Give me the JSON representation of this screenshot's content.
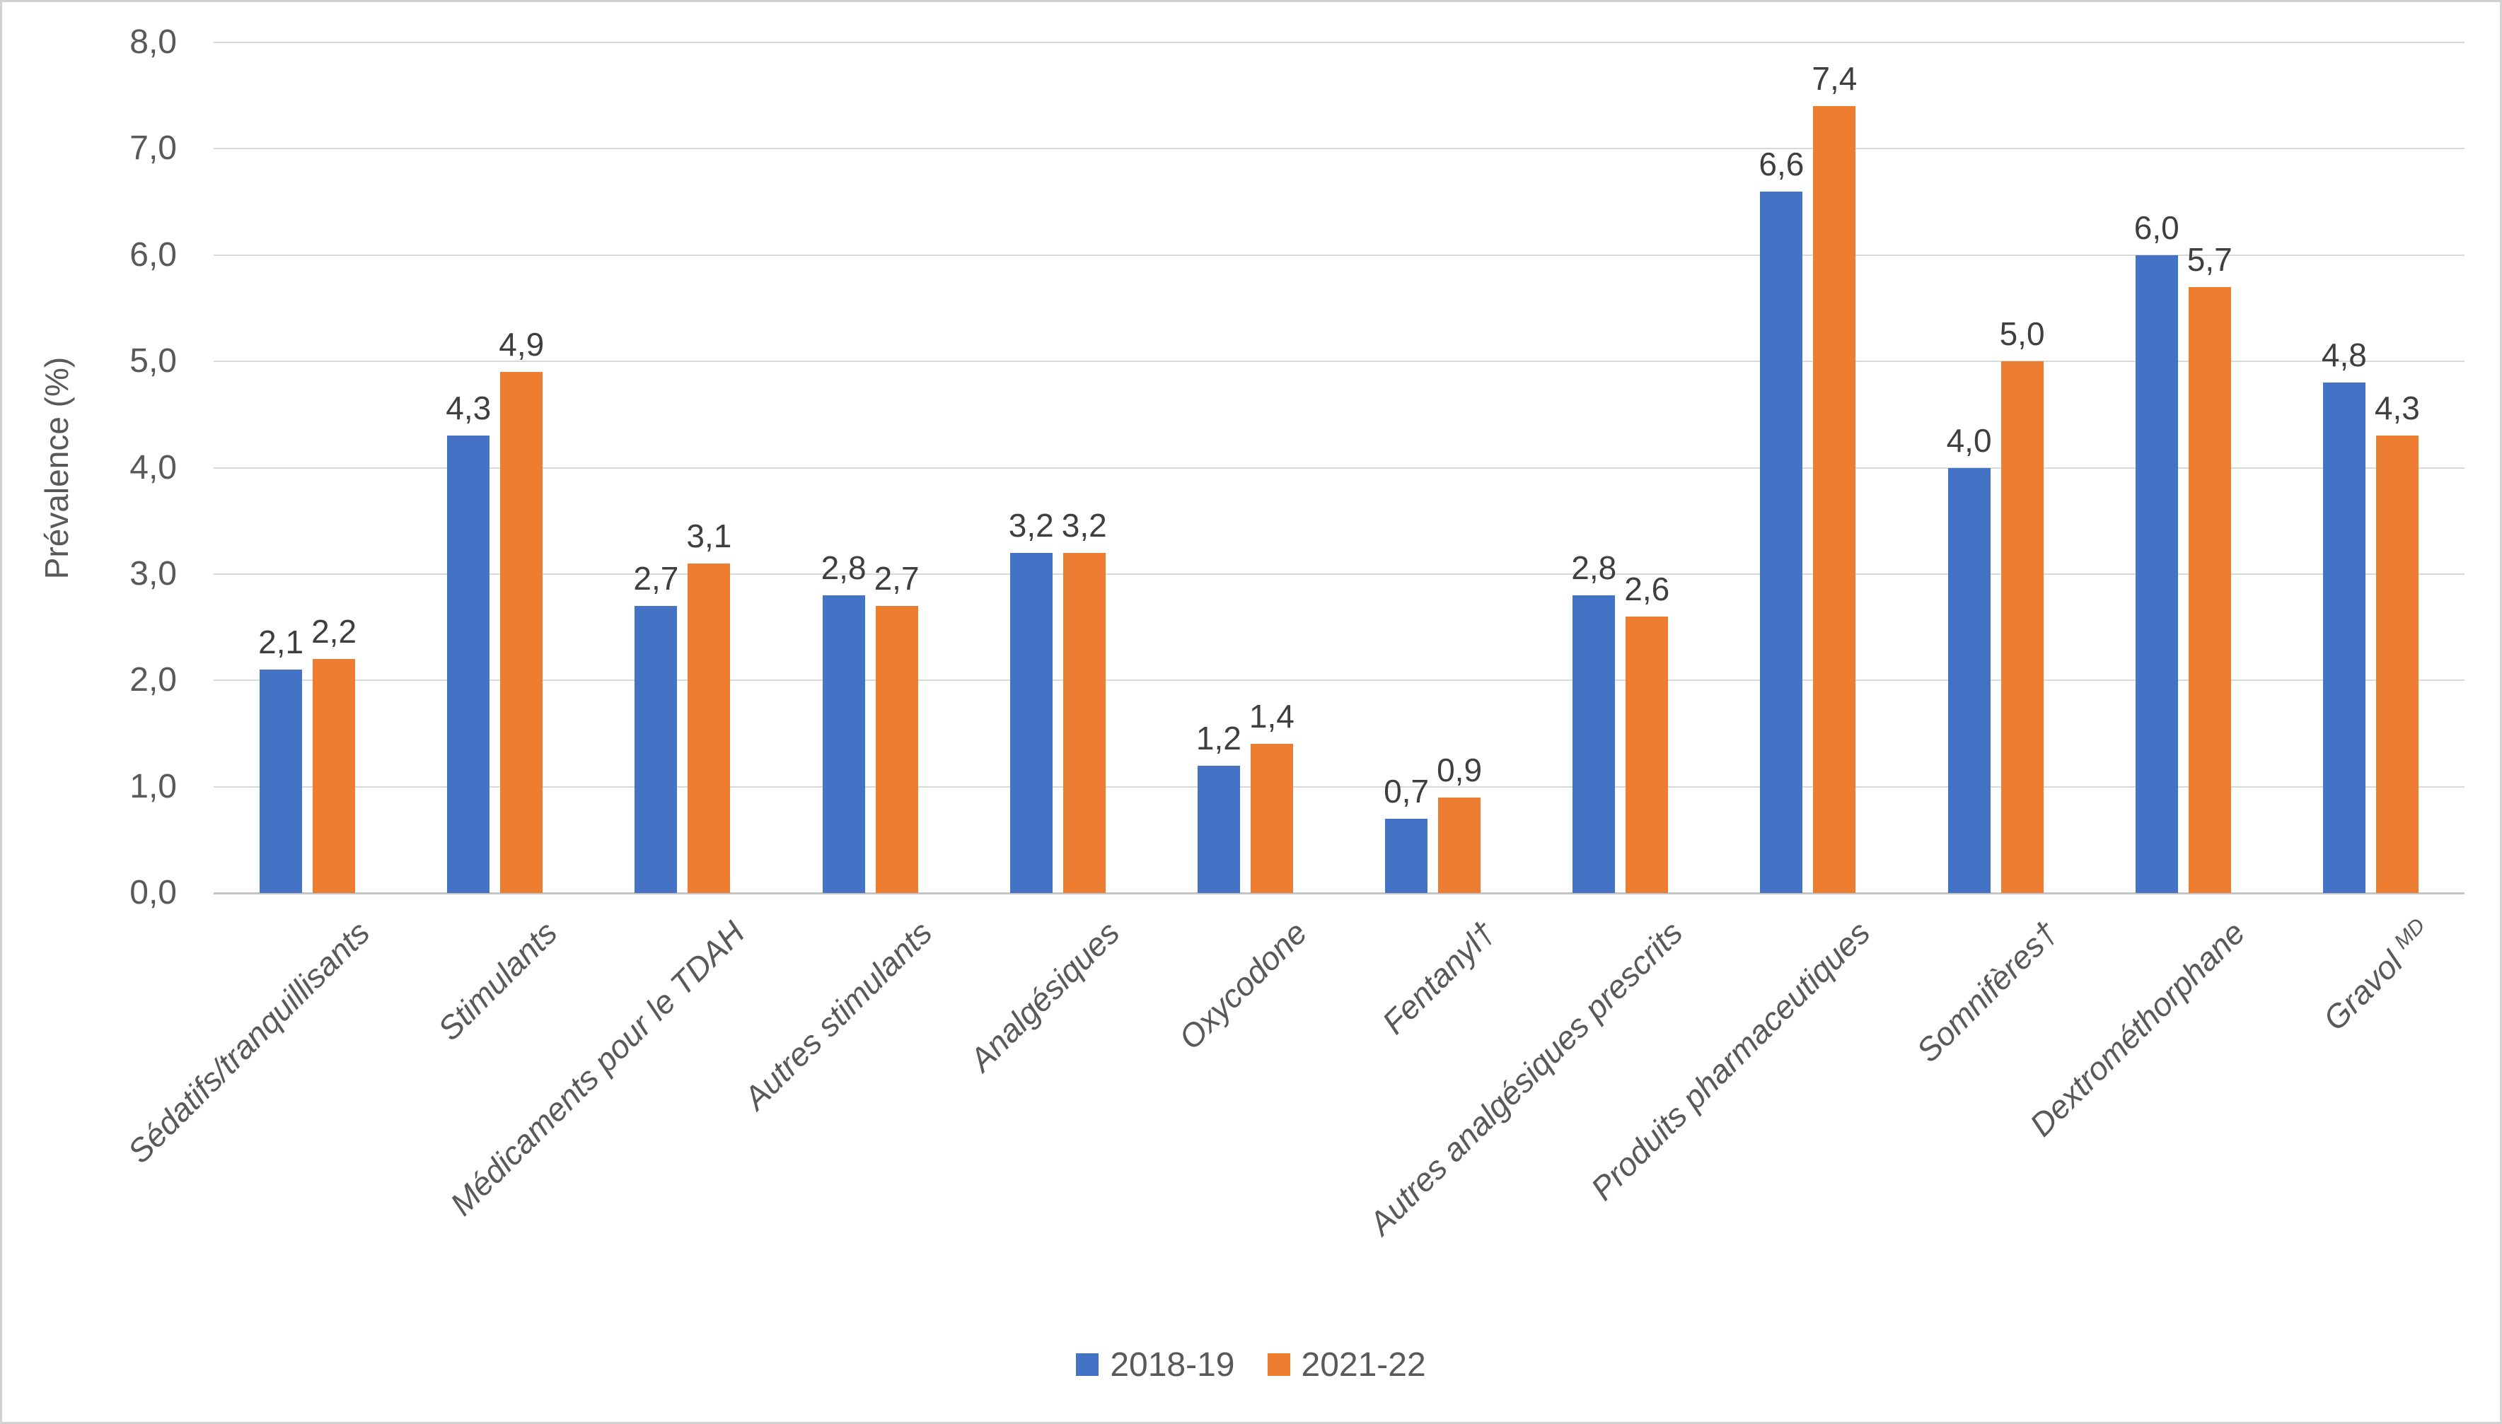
{
  "chart_data": {
    "type": "bar",
    "title": "",
    "xlabel": "",
    "ylabel": "Prévalence (%)",
    "ylim": [
      0,
      8
    ],
    "ytick_labels": [
      "0,0",
      "1,0",
      "2,0",
      "3,0",
      "4,0",
      "5,0",
      "6,0",
      "7,0",
      "8,0"
    ],
    "grid": true,
    "legend_position": "bottom",
    "decimal_separator": ",",
    "data_labels": true,
    "categories": [
      "Sédatifs/tranquillisants",
      "Stimulants",
      "Médicaments pour le TDAH",
      "Autres stimulants",
      "Analgésiques",
      "Oxycodone",
      "Fentanyl†",
      "Autres analgésiques prescrits",
      "Produits pharmaceutiques",
      "Somnifères†",
      "Dextrométhorphane",
      "Gravol^MD"
    ],
    "series": [
      {
        "name": "2018-19",
        "color": "#4472C4",
        "values": [
          2.1,
          4.3,
          2.7,
          2.8,
          3.2,
          1.2,
          0.7,
          2.8,
          6.6,
          4.0,
          6.0,
          4.8
        ]
      },
      {
        "name": "2021-22",
        "color": "#ED7D31",
        "values": [
          2.2,
          4.9,
          3.1,
          2.7,
          3.2,
          1.4,
          0.9,
          2.6,
          7.4,
          5.0,
          5.7,
          4.3
        ]
      }
    ]
  }
}
